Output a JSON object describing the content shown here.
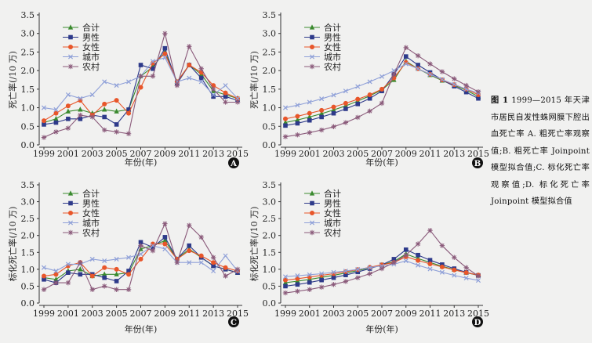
{
  "caption": {
    "label": "图 1",
    "text": "1999—2015 年天津市居民自发性蛛网膜下腔出血死亡率 A. 粗死亡率观察值;B. 粗死亡率 Joinpoint 模型拟合值;C. 标化死亡率观察值;D. 标化死亡率 Joinpoint 模型拟合值"
  },
  "colors": {
    "合计": "#3a8a2e",
    "男性": "#2e3a8a",
    "女性": "#e8562a",
    "城市": "#8fa0d8",
    "农村": "#8a5a7a"
  },
  "chart_data": [
    {
      "panel": "A",
      "type": "line",
      "ylabel": "死亡率(/10 万)",
      "xlabel": "年份(年)",
      "ylim": [
        0,
        3.5
      ],
      "yticks": [
        "0.0",
        "0.5",
        "1.0",
        "1.5",
        "2.0",
        "2.5",
        "3.0",
        "3.5"
      ],
      "x": [
        1999,
        2000,
        2001,
        2002,
        2003,
        2004,
        2005,
        2006,
        2007,
        2008,
        2009,
        2010,
        2011,
        2012,
        2013,
        2014,
        2015
      ],
      "xticks": [
        "1999",
        "2001",
        "2003",
        "2005",
        "2007",
        "2009",
        "2011",
        "2013",
        "2015"
      ],
      "legend": [
        "合计",
        "男性",
        "女性",
        "城市",
        "农村"
      ],
      "series": [
        {
          "name": "合计",
          "marker": "triangle",
          "values": [
            0.6,
            0.7,
            0.9,
            0.95,
            0.85,
            0.95,
            0.9,
            0.95,
            1.85,
            2.1,
            2.5,
            1.7,
            2.15,
            1.9,
            1.45,
            1.35,
            1.25
          ]
        },
        {
          "name": "男性",
          "marker": "square",
          "values": [
            0.55,
            0.6,
            0.7,
            0.7,
            0.8,
            0.75,
            0.55,
            0.95,
            2.15,
            2.05,
            2.6,
            1.65,
            2.15,
            1.8,
            1.3,
            1.3,
            1.2
          ]
        },
        {
          "name": "女性",
          "marker": "circle",
          "values": [
            0.65,
            0.85,
            1.05,
            1.2,
            0.8,
            1.1,
            1.2,
            0.85,
            1.55,
            2.2,
            2.45,
            1.7,
            2.15,
            1.95,
            1.6,
            1.4,
            1.25
          ]
        },
        {
          "name": "城市",
          "marker": "x",
          "values": [
            1.0,
            0.95,
            1.35,
            1.25,
            1.35,
            1.7,
            1.6,
            1.7,
            1.85,
            2.25,
            2.35,
            1.7,
            1.8,
            1.7,
            1.35,
            1.6,
            1.25
          ]
        },
        {
          "name": "农村",
          "marker": "star",
          "values": [
            0.2,
            0.35,
            0.45,
            0.8,
            0.75,
            0.4,
            0.35,
            0.3,
            1.85,
            1.85,
            3.0,
            1.6,
            2.65,
            2.05,
            1.5,
            1.15,
            1.15
          ]
        }
      ]
    },
    {
      "panel": "B",
      "type": "line",
      "ylabel": "死亡率(/10 万)",
      "xlabel": "年份(年)",
      "ylim": [
        0,
        3.5
      ],
      "yticks": [
        "0.0",
        "0.5",
        "1.0",
        "1.5",
        "2.0",
        "2.5",
        "3.0",
        "3.5"
      ],
      "x": [
        1999,
        2000,
        2001,
        2002,
        2003,
        2004,
        2005,
        2006,
        2007,
        2008,
        2009,
        2010,
        2011,
        2012,
        2013,
        2014,
        2015
      ],
      "xticks": [
        "1999",
        "2001",
        "2003",
        "2005",
        "2007",
        "2009",
        "2011",
        "2013",
        "2015"
      ],
      "legend": [
        "合计",
        "男性",
        "女性",
        "城市",
        "农村"
      ],
      "series": [
        {
          "name": "合计",
          "marker": "triangle",
          "values": [
            0.6,
            0.67,
            0.75,
            0.84,
            0.94,
            1.05,
            1.18,
            1.32,
            1.48,
            1.75,
            2.25,
            2.05,
            1.88,
            1.73,
            1.6,
            1.47,
            1.3
          ]
        },
        {
          "name": "男性",
          "marker": "square",
          "values": [
            0.52,
            0.58,
            0.66,
            0.75,
            0.85,
            0.97,
            1.1,
            1.25,
            1.45,
            1.9,
            2.38,
            2.15,
            1.95,
            1.75,
            1.58,
            1.42,
            1.25
          ]
        },
        {
          "name": "女性",
          "marker": "circle",
          "values": [
            0.7,
            0.77,
            0.85,
            0.93,
            1.02,
            1.12,
            1.23,
            1.35,
            1.5,
            1.8,
            2.22,
            2.05,
            1.9,
            1.75,
            1.62,
            1.5,
            1.35
          ]
        },
        {
          "name": "城市",
          "marker": "x",
          "values": [
            1.0,
            1.07,
            1.15,
            1.24,
            1.34,
            1.45,
            1.57,
            1.7,
            1.84,
            2.0,
            2.18,
            2.05,
            1.9,
            1.76,
            1.63,
            1.5,
            1.4
          ]
        },
        {
          "name": "农村",
          "marker": "star",
          "values": [
            0.22,
            0.27,
            0.33,
            0.4,
            0.49,
            0.6,
            0.74,
            0.91,
            1.12,
            1.9,
            2.62,
            2.4,
            2.18,
            1.97,
            1.78,
            1.6,
            1.43
          ]
        }
      ]
    },
    {
      "panel": "C",
      "type": "line",
      "ylabel": "标化死亡率(/10 万)",
      "xlabel": "年份(年)",
      "ylim": [
        0,
        3.5
      ],
      "yticks": [
        "0.0",
        "0.5",
        "1.0",
        "1.5",
        "2.0",
        "2.5",
        "3.0",
        "3.5"
      ],
      "x": [
        1999,
        2000,
        2001,
        2002,
        2003,
        2004,
        2005,
        2006,
        2007,
        2008,
        2009,
        2010,
        2011,
        2012,
        2013,
        2014,
        2015
      ],
      "xticks": [
        "1999",
        "2001",
        "2003",
        "2005",
        "2007",
        "2009",
        "2011",
        "2013",
        "2015"
      ],
      "legend": [
        "合计",
        "男性",
        "女性",
        "城市",
        "农村"
      ],
      "series": [
        {
          "name": "合计",
          "marker": "triangle",
          "values": [
            0.75,
            0.7,
            0.95,
            1.0,
            0.8,
            0.85,
            0.85,
            0.9,
            1.6,
            1.7,
            1.85,
            1.3,
            1.6,
            1.35,
            1.1,
            1.0,
            0.9
          ]
        },
        {
          "name": "男性",
          "marker": "square",
          "values": [
            0.7,
            0.6,
            0.9,
            0.85,
            0.85,
            0.75,
            0.65,
            0.95,
            1.8,
            1.65,
            1.95,
            1.3,
            1.7,
            1.35,
            1.1,
            1.0,
            0.9
          ]
        },
        {
          "name": "女性",
          "marker": "circle",
          "values": [
            0.8,
            0.85,
            1.1,
            1.2,
            0.8,
            1.05,
            1.0,
            0.85,
            1.3,
            1.75,
            1.75,
            1.3,
            1.55,
            1.4,
            1.2,
            1.05,
            0.95
          ]
        },
        {
          "name": "城市",
          "marker": "x",
          "values": [
            1.05,
            0.95,
            1.15,
            1.15,
            1.3,
            1.25,
            1.3,
            1.35,
            1.45,
            1.7,
            1.6,
            1.2,
            1.2,
            1.2,
            0.95,
            1.4,
            0.95
          ]
        },
        {
          "name": "农村",
          "marker": "star",
          "values": [
            0.4,
            0.6,
            0.6,
            1.2,
            0.4,
            0.5,
            0.4,
            0.4,
            1.7,
            1.55,
            2.35,
            1.2,
            2.3,
            1.95,
            1.35,
            0.8,
            1.0
          ]
        }
      ]
    },
    {
      "panel": "D",
      "type": "line",
      "ylabel": "标化死亡率(/10 万)",
      "xlabel": "年份(年)",
      "ylim": [
        0,
        3.5
      ],
      "yticks": [
        "0.0",
        "0.5",
        "1.0",
        "1.5",
        "2.0",
        "2.5",
        "3.0",
        "3.5"
      ],
      "x": [
        1999,
        2000,
        2001,
        2002,
        2003,
        2004,
        2005,
        2006,
        2007,
        2008,
        2009,
        2010,
        2011,
        2012,
        2013,
        2014,
        2015
      ],
      "xticks": [
        "1999",
        "2001",
        "2003",
        "2005",
        "2007",
        "2009",
        "2011",
        "2013",
        "2015"
      ],
      "legend": [
        "合计",
        "男性",
        "女性",
        "城市",
        "农村"
      ],
      "series": [
        {
          "name": "合计",
          "marker": "triangle",
          "values": [
            0.6,
            0.65,
            0.7,
            0.76,
            0.82,
            0.89,
            0.96,
            1.04,
            1.13,
            1.23,
            1.45,
            1.32,
            1.2,
            1.09,
            0.99,
            0.9,
            0.82
          ]
        },
        {
          "name": "男性",
          "marker": "square",
          "values": [
            0.5,
            0.55,
            0.61,
            0.68,
            0.75,
            0.83,
            0.92,
            1.02,
            1.13,
            1.3,
            1.58,
            1.42,
            1.27,
            1.14,
            1.02,
            0.91,
            0.82
          ]
        },
        {
          "name": "女性",
          "marker": "circle",
          "values": [
            0.68,
            0.72,
            0.77,
            0.82,
            0.87,
            0.93,
            0.99,
            1.06,
            1.13,
            1.2,
            1.37,
            1.26,
            1.16,
            1.07,
            0.98,
            0.9,
            0.83
          ]
        },
        {
          "name": "城市",
          "marker": "x",
          "values": [
            0.78,
            0.81,
            0.84,
            0.87,
            0.91,
            0.95,
            1.0,
            1.05,
            1.1,
            1.15,
            1.25,
            1.12,
            1.01,
            0.91,
            0.82,
            0.74,
            0.67
          ]
        },
        {
          "name": "农村",
          "marker": "star",
          "values": [
            0.3,
            0.35,
            0.4,
            0.47,
            0.55,
            0.64,
            0.75,
            0.87,
            1.02,
            1.2,
            1.42,
            1.75,
            2.15,
            1.7,
            1.35,
            1.05,
            0.8
          ]
        }
      ]
    }
  ]
}
